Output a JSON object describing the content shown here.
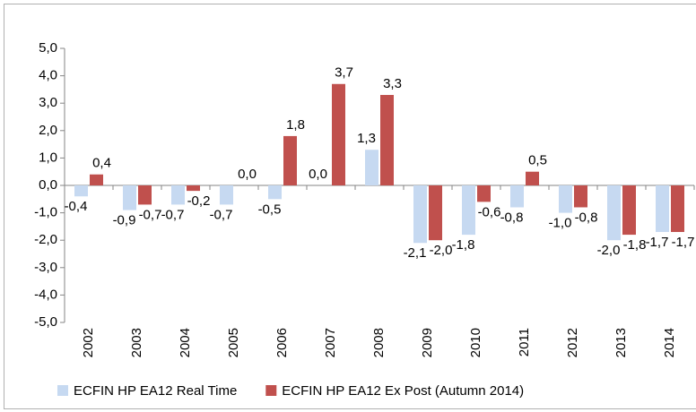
{
  "chart_data": {
    "type": "bar",
    "categories": [
      "2002",
      "2003",
      "2004",
      "2005",
      "2006",
      "2007",
      "2008",
      "2009",
      "2010",
      "2011",
      "2012",
      "2013",
      "2014"
    ],
    "series": [
      {
        "name": "ECFIN HP EA12 Real Time",
        "color": "#c6d9f1",
        "values": [
          -0.4,
          -0.9,
          -0.7,
          -0.7,
          -0.5,
          0.0,
          1.3,
          -2.1,
          -1.8,
          -0.8,
          -1.0,
          -2.0,
          -1.7
        ],
        "value_labels": [
          "-0,4",
          "-0,9",
          "-0,7",
          "-0,7",
          "-0,5",
          "0,0",
          "1,3",
          "-2,1",
          "-1,8",
          "-0,8",
          "-1,0",
          "-2,0",
          "-1,7"
        ]
      },
      {
        "name": "ECFIN HP EA12 Ex Post (Autumn 2014)",
        "color": "#c0504d",
        "values": [
          0.4,
          -0.7,
          -0.2,
          0.0,
          1.8,
          3.7,
          3.3,
          -2.0,
          -0.6,
          0.5,
          -0.8,
          -1.8,
          -1.7
        ],
        "value_labels": [
          "0,4",
          "-0,7",
          "-0,2",
          "0,0",
          "1,8",
          "3,7",
          "3,3",
          "-2,0",
          "-0,6",
          "0,5",
          "-0,8",
          "-1,8",
          "-1,7"
        ]
      }
    ],
    "ylim": [
      -5,
      5
    ],
    "yticks": [
      {
        "value": 5,
        "label": "5,0"
      },
      {
        "value": 4,
        "label": "4,0"
      },
      {
        "value": 3,
        "label": "3,0"
      },
      {
        "value": 2,
        "label": "2,0"
      },
      {
        "value": 1,
        "label": "1,0"
      },
      {
        "value": 0,
        "label": "0,0"
      },
      {
        "value": -1,
        "label": "-1,0"
      },
      {
        "value": -2,
        "label": "-2,0"
      },
      {
        "value": -3,
        "label": "-3,0"
      },
      {
        "value": -4,
        "label": "-4,0"
      },
      {
        "value": -5,
        "label": "-5,0"
      }
    ],
    "grid": false,
    "legend": "bottom"
  }
}
